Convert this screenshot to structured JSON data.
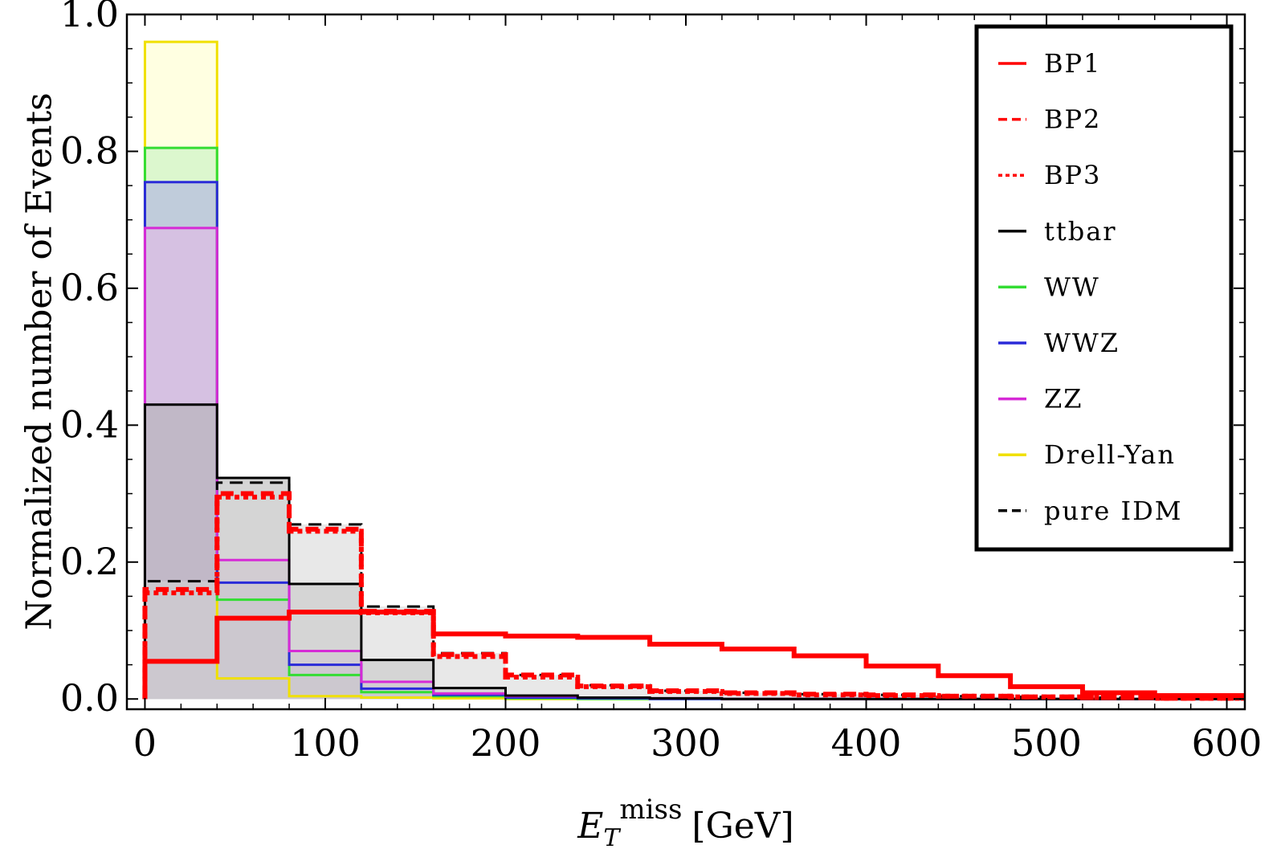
{
  "chart_data": {
    "type": "bar",
    "subtype": "step-histogram",
    "xlabel_main": "E",
    "xlabel_sub": "T",
    "xlabel_sup": "miss",
    "xlabel_unit": "[GeV]",
    "ylabel": "Normalized number of Events",
    "xlim": [
      -10,
      610
    ],
    "ylim": [
      -0.015,
      1.0
    ],
    "xticks": [
      0,
      100,
      200,
      300,
      400,
      500,
      600
    ],
    "xtick_labels": [
      "0",
      "100",
      "200",
      "300",
      "400",
      "500",
      "600"
    ],
    "yticks": [
      0.0,
      0.2,
      0.4,
      0.6,
      0.8,
      1.0
    ],
    "ytick_labels": [
      "0.0",
      "0.2",
      "0.4",
      "0.6",
      "0.8",
      "1.0"
    ],
    "grid": false,
    "legend_position": "top-right",
    "bin_edges": [
      0,
      40,
      80,
      120,
      160,
      200,
      240,
      280,
      320,
      360,
      400,
      440,
      480,
      520,
      560,
      610
    ],
    "series": [
      {
        "name": "Drell-Yan",
        "color": "#f0e000",
        "style": "solid",
        "fill": "#ffffc8",
        "values": [
          0.96,
          0.03,
          0.004,
          0.002,
          0.001,
          0,
          0,
          0,
          0,
          0,
          0,
          0,
          0,
          0,
          0
        ]
      },
      {
        "name": "WW",
        "color": "#33dd33",
        "style": "solid",
        "fill": "#bff0bf",
        "values": [
          0.805,
          0.145,
          0.035,
          0.01,
          0.004,
          0.001,
          0,
          0,
          0,
          0,
          0,
          0,
          0,
          0,
          0
        ]
      },
      {
        "name": "WWZ",
        "color": "#2a2ad8",
        "style": "solid",
        "fill": "#a9a9e6",
        "values": [
          0.755,
          0.17,
          0.05,
          0.015,
          0.006,
          0.002,
          0.001,
          0,
          0,
          0,
          0,
          0,
          0,
          0,
          0
        ]
      },
      {
        "name": "ZZ",
        "color": "#d62ad6",
        "style": "solid",
        "fill": "#e8b8e8",
        "values": [
          0.688,
          0.203,
          0.07,
          0.025,
          0.008,
          0.004,
          0.002,
          0.001,
          0,
          0,
          0,
          0,
          0,
          0,
          0
        ]
      },
      {
        "name": "ttbar",
        "color": "#000000",
        "style": "solid",
        "fill": "#b0b0b0",
        "values": [
          0.43,
          0.323,
          0.168,
          0.057,
          0.016,
          0.005,
          0.002,
          0.001,
          0,
          0,
          0,
          0,
          0,
          0,
          0
        ]
      },
      {
        "name": "pure IDM",
        "color": "#000000",
        "style": "dashed",
        "fill": "#d6d6d6",
        "values": [
          0.172,
          0.316,
          0.255,
          0.135,
          0.067,
          0.035,
          0.02,
          0.012,
          0.009,
          0.007,
          0.006,
          0.004,
          0.003,
          0.002,
          0.001
        ]
      },
      {
        "name": "BP1",
        "color": "#ff0000",
        "style": "solid",
        "fill": "none",
        "values": [
          0.055,
          0.118,
          0.127,
          0.127,
          0.095,
          0.092,
          0.09,
          0.08,
          0.073,
          0.063,
          0.048,
          0.034,
          0.018,
          0.009,
          0.005
        ]
      },
      {
        "name": "BP2",
        "color": "#ff0000",
        "style": "dashed",
        "fill": "none",
        "values": [
          0.16,
          0.3,
          0.248,
          0.128,
          0.065,
          0.035,
          0.019,
          0.012,
          0.009,
          0.007,
          0.006,
          0.004,
          0.003,
          0.002,
          0.001
        ]
      },
      {
        "name": "BP3",
        "color": "#ff0000",
        "style": "dotted",
        "fill": "none",
        "values": [
          0.155,
          0.295,
          0.245,
          0.126,
          0.062,
          0.032,
          0.018,
          0.011,
          0.008,
          0.006,
          0.005,
          0.004,
          0.003,
          0.002,
          0.001
        ]
      }
    ],
    "legend_order": [
      "BP1",
      "BP2",
      "BP3",
      "ttbar",
      "WW",
      "WWZ",
      "ZZ",
      "Drell-Yan",
      "pure IDM"
    ]
  }
}
